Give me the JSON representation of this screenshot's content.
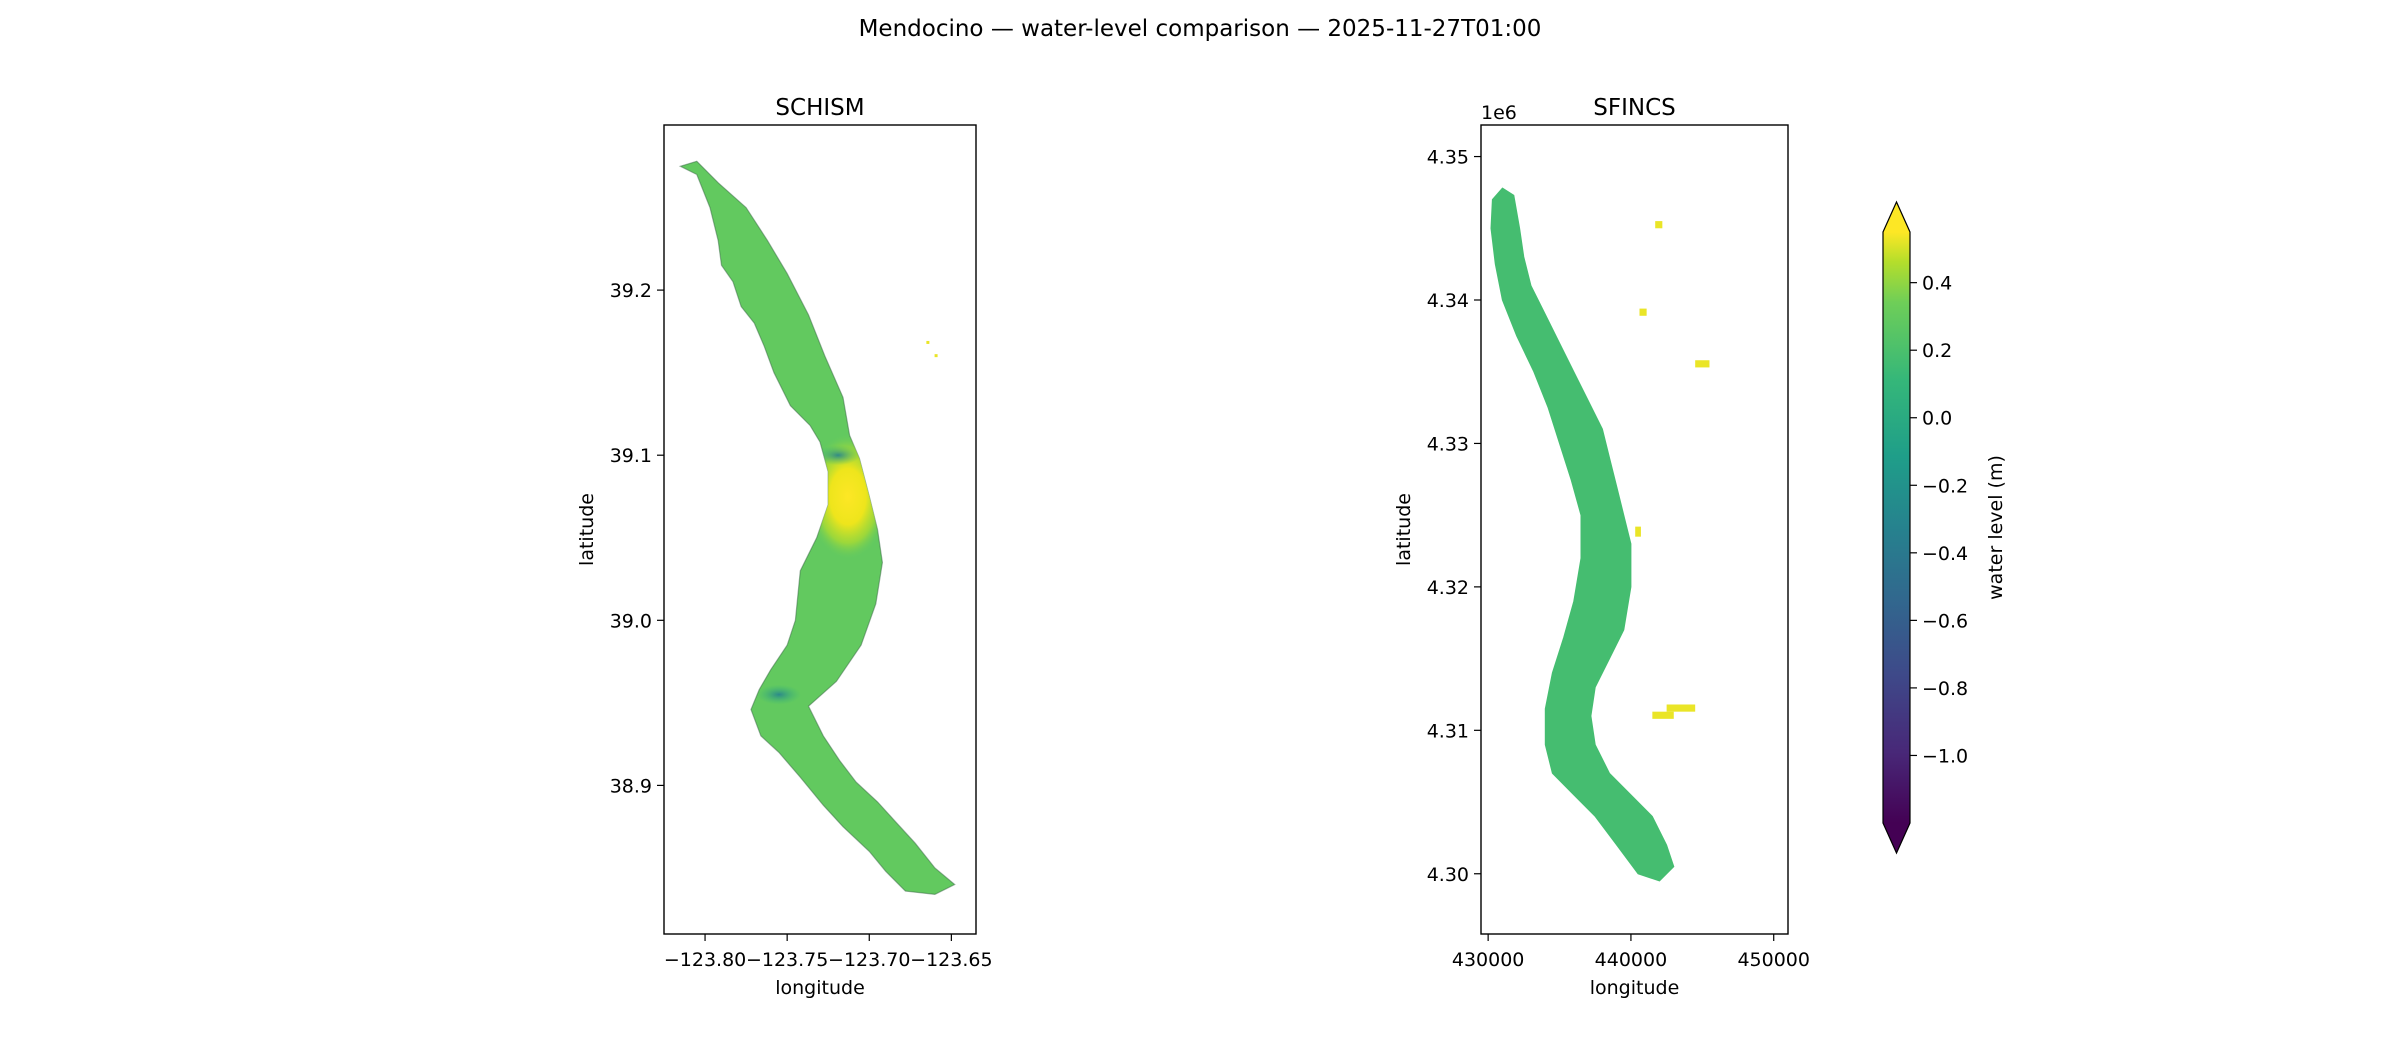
{
  "figure": {
    "suptitle": "Mendocino — water-level comparison — 2025-11-27T01:00"
  },
  "chart_data": [
    {
      "type": "heatmap",
      "title": "SCHISM",
      "xlabel": "longitude",
      "ylabel": "latitude",
      "xlim": [
        -123.825,
        -123.635
      ],
      "ylim": [
        38.81,
        39.3
      ],
      "xticks": [
        -123.8,
        -123.75,
        -123.7,
        -123.65
      ],
      "xtick_labels": [
        "−123.80",
        "−123.75",
        "−123.70",
        "−123.65"
      ],
      "yticks": [
        38.9,
        39.0,
        39.1,
        39.2
      ],
      "ytick_labels": [
        "38.9",
        "39.0",
        "39.1",
        "39.2"
      ],
      "grid": false,
      "domain_outline": [
        [
          -123.815,
          39.275
        ],
        [
          -123.805,
          39.27
        ],
        [
          -123.797,
          39.25
        ],
        [
          -123.792,
          39.23
        ],
        [
          -123.79,
          39.215
        ],
        [
          -123.783,
          39.205
        ],
        [
          -123.778,
          39.19
        ],
        [
          -123.77,
          39.18
        ],
        [
          -123.764,
          39.166
        ],
        [
          -123.758,
          39.15
        ],
        [
          -123.748,
          39.13
        ],
        [
          -123.736,
          39.118
        ],
        [
          -123.73,
          39.108
        ],
        [
          -123.725,
          39.09
        ],
        [
          -123.725,
          39.07
        ],
        [
          -123.732,
          39.05
        ],
        [
          -123.742,
          39.03
        ],
        [
          -123.745,
          39.0
        ],
        [
          -123.75,
          38.985
        ],
        [
          -123.76,
          38.97
        ],
        [
          -123.767,
          38.958
        ],
        [
          -123.772,
          38.946
        ],
        [
          -123.766,
          38.93
        ],
        [
          -123.755,
          38.92
        ],
        [
          -123.742,
          38.905
        ],
        [
          -123.728,
          38.888
        ],
        [
          -123.716,
          38.875
        ],
        [
          -123.7,
          38.86
        ],
        [
          -123.69,
          38.848
        ],
        [
          -123.678,
          38.836
        ],
        [
          -123.66,
          38.834
        ],
        [
          -123.648,
          38.84
        ],
        [
          -123.66,
          38.85
        ],
        [
          -123.672,
          38.865
        ],
        [
          -123.684,
          38.878
        ],
        [
          -123.695,
          38.89
        ],
        [
          -123.708,
          38.902
        ],
        [
          -123.718,
          38.915
        ],
        [
          -123.728,
          38.93
        ],
        [
          -123.737,
          38.948
        ],
        [
          -123.72,
          38.963
        ],
        [
          -123.705,
          38.985
        ],
        [
          -123.696,
          39.01
        ],
        [
          -123.692,
          39.035
        ],
        [
          -123.695,
          39.055
        ],
        [
          -123.7,
          39.075
        ],
        [
          -123.706,
          39.098
        ],
        [
          -123.712,
          39.112
        ],
        [
          -123.716,
          39.135
        ],
        [
          -123.727,
          39.16
        ],
        [
          -123.737,
          39.185
        ],
        [
          -123.75,
          39.21
        ],
        [
          -123.762,
          39.23
        ],
        [
          -123.775,
          39.25
        ],
        [
          -123.792,
          39.265
        ],
        [
          -123.805,
          39.278
        ]
      ],
      "field_features": [
        {
          "label": "high water-level patch",
          "lon": -123.713,
          "lat": 39.075,
          "value": 0.5
        },
        {
          "label": "low water-level streak",
          "lon": -123.719,
          "lat": 39.1,
          "value": -0.2
        },
        {
          "label": "low water-level streak",
          "lon": -123.755,
          "lat": 38.955,
          "value": -0.15
        }
      ],
      "typical_value": 0.12,
      "isolated_points": [
        {
          "lon": -123.664,
          "lat": 39.168,
          "value": 0.5
        },
        {
          "lon": -123.659,
          "lat": 39.16,
          "value": 0.5
        }
      ]
    },
    {
      "type": "heatmap",
      "title": "SFINCS",
      "xlabel": "longitude",
      "ylabel": "latitude",
      "offset_label": "1e6",
      "xlim": [
        429500,
        451000
      ],
      "ylim": [
        4295800,
        4352200
      ],
      "xticks": [
        430000,
        440000,
        450000
      ],
      "xtick_labels": [
        "430000",
        "440000",
        "450000"
      ],
      "yticks": [
        4300000,
        4310000,
        4320000,
        4330000,
        4340000,
        4350000
      ],
      "ytick_labels": [
        "4.30",
        "4.31",
        "4.32",
        "4.33",
        "4.34",
        "4.35"
      ],
      "grid": false,
      "domain_outline": [
        [
          431000,
          4347800
        ],
        [
          431800,
          4347300
        ],
        [
          432200,
          4345000
        ],
        [
          432500,
          4343000
        ],
        [
          433000,
          4341000
        ],
        [
          434000,
          4339000
        ],
        [
          435000,
          4337000
        ],
        [
          436000,
          4335000
        ],
        [
          437000,
          4333000
        ],
        [
          438000,
          4331000
        ],
        [
          438500,
          4329000
        ],
        [
          439000,
          4327000
        ],
        [
          439500,
          4325000
        ],
        [
          440000,
          4323000
        ],
        [
          440000,
          4320000
        ],
        [
          439500,
          4317000
        ],
        [
          438500,
          4315000
        ],
        [
          437500,
          4313000
        ],
        [
          437200,
          4311000
        ],
        [
          437500,
          4309000
        ],
        [
          438500,
          4307000
        ],
        [
          440000,
          4305500
        ],
        [
          441500,
          4304000
        ],
        [
          442500,
          4302000
        ],
        [
          443000,
          4300500
        ],
        [
          442000,
          4299500
        ],
        [
          440500,
          4300000
        ],
        [
          439000,
          4302000
        ],
        [
          437500,
          4304000
        ],
        [
          436000,
          4305500
        ],
        [
          434500,
          4307000
        ],
        [
          434000,
          4309000
        ],
        [
          434000,
          4311500
        ],
        [
          434500,
          4314000
        ],
        [
          435300,
          4316500
        ],
        [
          436000,
          4319000
        ],
        [
          436500,
          4322000
        ],
        [
          436500,
          4325000
        ],
        [
          435800,
          4327500
        ],
        [
          435000,
          4330000
        ],
        [
          434200,
          4332500
        ],
        [
          433200,
          4335000
        ],
        [
          432000,
          4337500
        ],
        [
          431000,
          4340000
        ],
        [
          430500,
          4342500
        ],
        [
          430200,
          4345000
        ],
        [
          430300,
          4347000
        ]
      ],
      "typical_value": 0.02,
      "isolated_points": [
        {
          "x": 441700,
          "y": 4345000,
          "w": 500,
          "h": 500,
          "value": 0.5
        },
        {
          "x": 440600,
          "y": 4338900,
          "w": 500,
          "h": 500,
          "value": 0.5
        },
        {
          "x": 444500,
          "y": 4335300,
          "w": 1000,
          "h": 500,
          "value": 0.5
        },
        {
          "x": 440300,
          "y": 4323500,
          "w": 400,
          "h": 700,
          "value": 0.5
        },
        {
          "x": 442500,
          "y": 4311300,
          "w": 2000,
          "h": 500,
          "value": 0.5
        },
        {
          "x": 441500,
          "y": 4310800,
          "w": 1500,
          "h": 500,
          "value": 0.5
        }
      ]
    }
  ],
  "colorbar": {
    "label": "water level (m)",
    "colormap": "viridis",
    "vmin": -1.2,
    "vmax": 0.55,
    "extend": "both",
    "ticks": [
      0.4,
      0.2,
      0.0,
      -0.2,
      -0.4,
      -0.6,
      -0.8,
      -1.0
    ],
    "tick_labels": [
      "0.4",
      "0.2",
      "0.0",
      "−0.2",
      "−0.4",
      "−0.6",
      "−0.8",
      "−1.0"
    ]
  }
}
